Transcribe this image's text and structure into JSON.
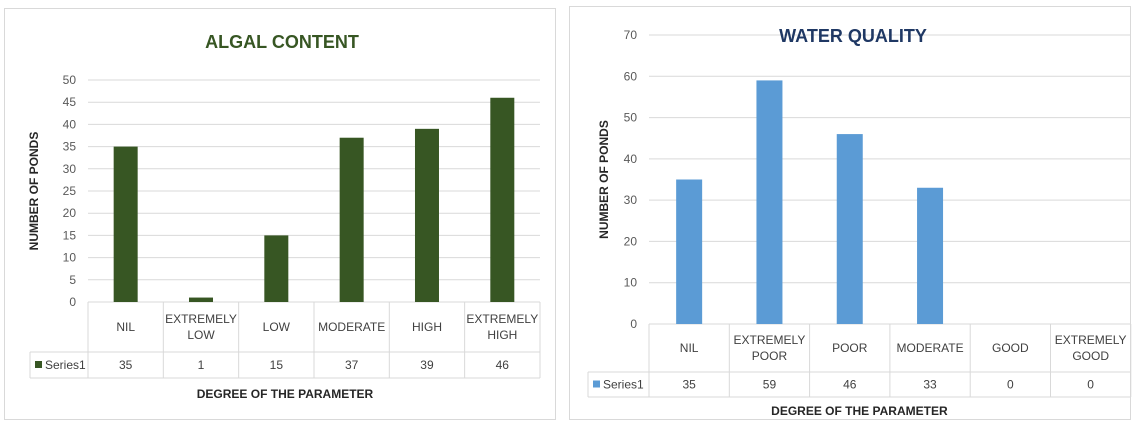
{
  "chart_data": [
    {
      "type": "bar",
      "title": "ALGAL CONTENT",
      "xlabel": "DEGREE OF THE PARAMETER",
      "ylabel": "NUMBER OF PONDS",
      "categories": [
        [
          "NIL"
        ],
        [
          "EXTREMELY",
          "LOW"
        ],
        [
          "LOW"
        ],
        [
          "MODERATE"
        ],
        [
          "HIGH"
        ],
        [
          "EXTREMELY",
          "HIGH"
        ]
      ],
      "series": [
        {
          "name": "Series1",
          "values": [
            35,
            1,
            15,
            37,
            39,
            46
          ]
        }
      ],
      "ylim": [
        0,
        50
      ],
      "ytick_step": 5,
      "grid": true,
      "legend": "data-table",
      "colors": {
        "bar": "#375623",
        "title": "#375623",
        "grid": "#d9d9d9"
      }
    },
    {
      "type": "bar",
      "title": "WATER QUALITY",
      "xlabel": "DEGREE OF THE PARAMETER",
      "ylabel": "NUMBER OF PONDS",
      "categories": [
        [
          "NIL"
        ],
        [
          "EXTREMELY",
          "POOR"
        ],
        [
          "POOR"
        ],
        [
          "MODERATE"
        ],
        [
          "GOOD"
        ],
        [
          "EXTREMELY",
          "GOOD"
        ]
      ],
      "series": [
        {
          "name": "Series1",
          "values": [
            35,
            59,
            46,
            33,
            0,
            0
          ]
        }
      ],
      "ylim": [
        0,
        70
      ],
      "ytick_step": 10,
      "grid": true,
      "legend": "data-table",
      "colors": {
        "bar": "#5b9bd5",
        "title": "#1f3864",
        "grid": "#d9d9d9"
      }
    }
  ]
}
